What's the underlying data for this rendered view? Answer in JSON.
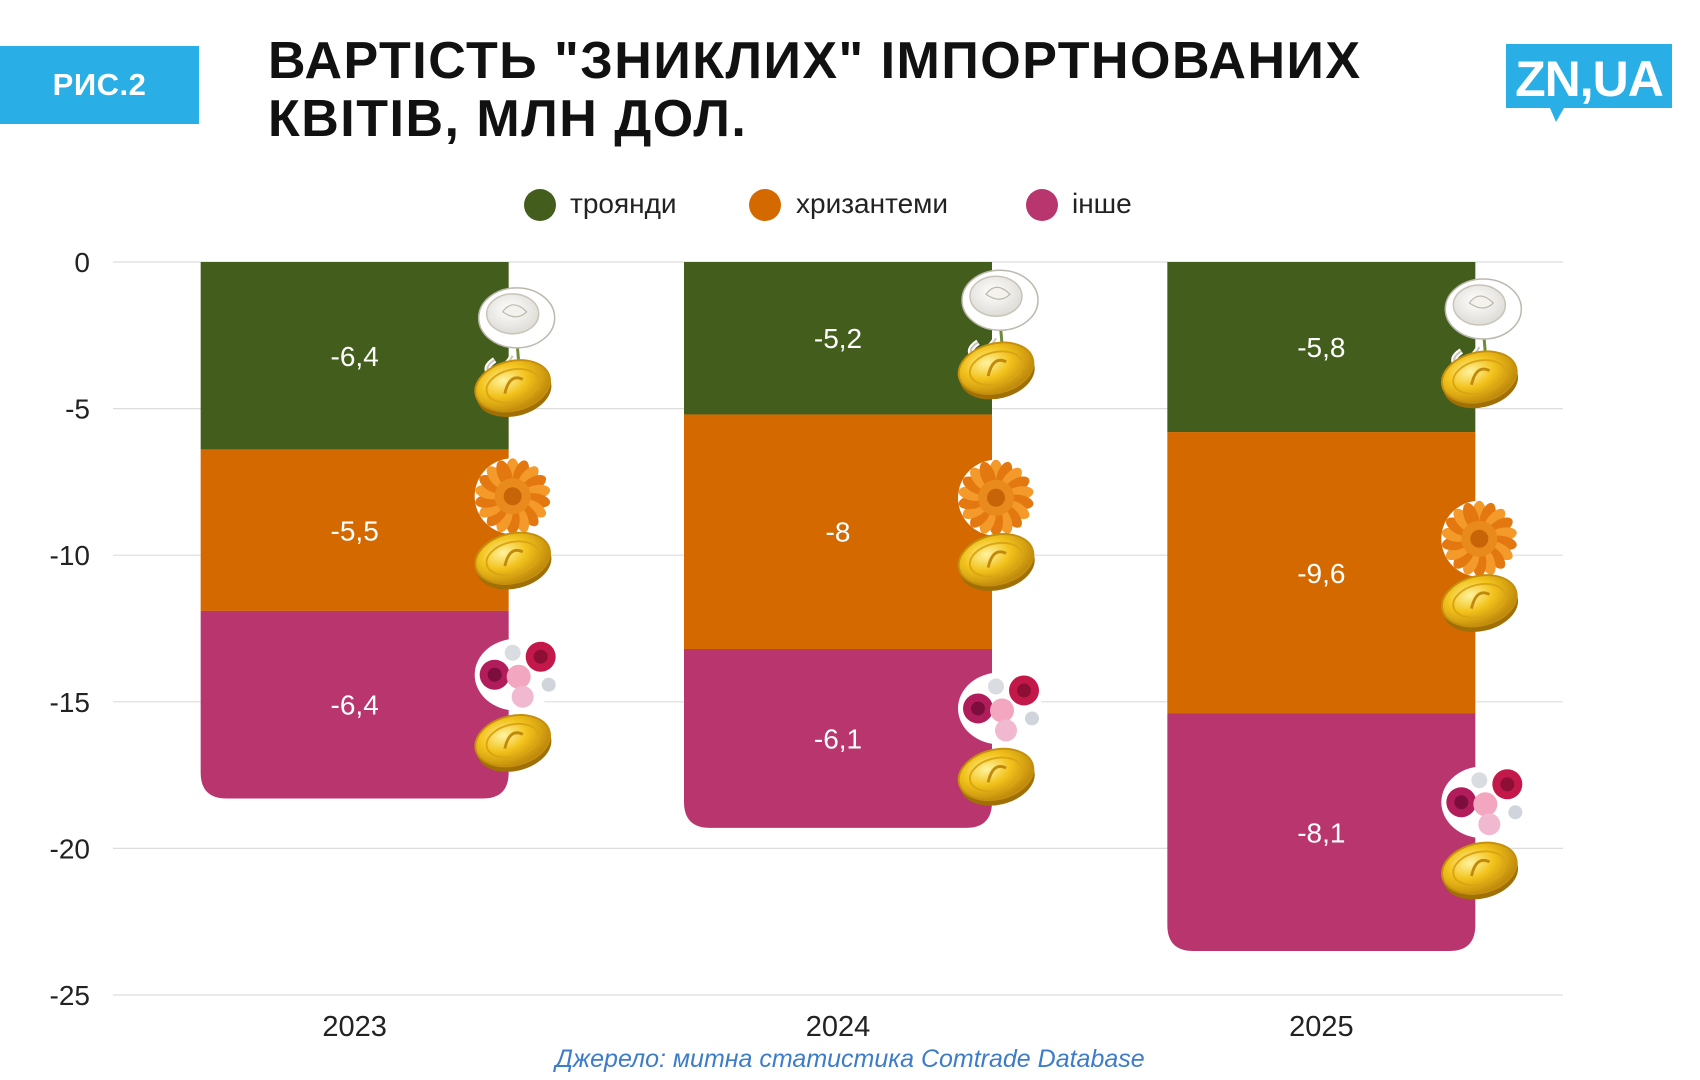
{
  "badge": "РИС.2",
  "title": "ВАРТІСТЬ \"ЗНИКЛИХ\" ІМПОРТНОВАНИХ КВІТІВ, МЛН ДОЛ.",
  "logo_text": "ZN,UA",
  "source": "Джерело: митна статистика Comtrade Database",
  "colors": {
    "badge": "#2aaee6",
    "logo": "#2aaee6",
    "roses": "#435e1c",
    "chrysanthemums": "#d46900",
    "other": "#b9356e",
    "gridline": "#dddddd",
    "source_text": "#3d7cc9"
  },
  "chart_data": {
    "type": "bar",
    "stacked": true,
    "categories": [
      "2023",
      "2024",
      "2025"
    ],
    "series": [
      {
        "name": "троянди",
        "values": [
          -6.4,
          -5.2,
          -5.8
        ],
        "labels": [
          "-6,4",
          "-5,2",
          "-5,8"
        ],
        "color": "#435e1c",
        "icon": "white-rose-coin-icon"
      },
      {
        "name": "хризантеми",
        "values": [
          -5.5,
          -8,
          -9.6
        ],
        "labels": [
          "-5,5",
          "-8",
          "-9,6"
        ],
        "color": "#d46900",
        "icon": "chrysanthemum-coin-icon"
      },
      {
        "name": "інше",
        "values": [
          -6.4,
          -6.1,
          -8.1
        ],
        "labels": [
          "-6,4",
          "-6,1",
          "-8,1"
        ],
        "color": "#b9356e",
        "icon": "bouquet-coin-icon"
      }
    ],
    "ylim": [
      -25,
      0
    ],
    "yticks": [
      0,
      -5,
      -10,
      -15,
      -20,
      -25
    ],
    "ytick_labels": [
      "0",
      "-5",
      "-10",
      "-15",
      "-20",
      "-25"
    ],
    "grid": true,
    "legend": "top-center"
  }
}
